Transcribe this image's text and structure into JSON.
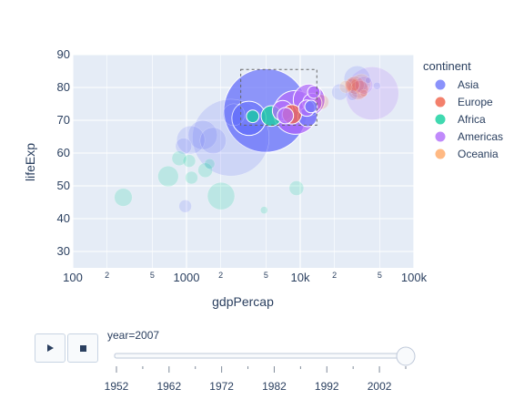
{
  "chart_data": {
    "type": "scatter",
    "frame_label": "year=2007",
    "xlabel": "gdpPercap",
    "ylabel": "lifeExp",
    "x_scale": "log",
    "xlim": [
      100,
      100000
    ],
    "ylim": [
      25,
      90
    ],
    "x_ticks": [
      {
        "value": 100,
        "label": "100"
      },
      {
        "value": 200,
        "label": "2"
      },
      {
        "value": 500,
        "label": "5"
      },
      {
        "value": 1000,
        "label": "1000"
      },
      {
        "value": 2000,
        "label": "2"
      },
      {
        "value": 5000,
        "label": "5"
      },
      {
        "value": 10000,
        "label": "10k"
      },
      {
        "value": 20000,
        "label": "2"
      },
      {
        "value": 50000,
        "label": "5"
      },
      {
        "value": 100000,
        "label": "100k"
      }
    ],
    "y_ticks": [
      30,
      40,
      50,
      60,
      70,
      80,
      90
    ],
    "grid": true,
    "legend": {
      "title": "continent",
      "placement": "right",
      "items": [
        {
          "name": "Asia",
          "color": "#636efa"
        },
        {
          "name": "Europe",
          "color": "#ef553b"
        },
        {
          "name": "Africa",
          "color": "#00cc96"
        },
        {
          "name": "Americas",
          "color": "#ab63fa"
        },
        {
          "name": "Oceania",
          "color": "#ffa15a"
        }
      ]
    },
    "series": [
      {
        "name": "Asia",
        "color": "#636efa",
        "points": [
          {
            "x": 4959,
            "y": 73.0,
            "s": 1.32
          },
          {
            "x": 2452,
            "y": 64.7,
            "s": 1.11
          },
          {
            "x": 3541,
            "y": 70.6,
            "s": 0.22
          },
          {
            "x": 1391,
            "y": 65.5,
            "s": 0.16
          },
          {
            "x": 31656,
            "y": 82.6,
            "s": 0.13
          },
          {
            "x": 1091,
            "y": 64.0,
            "s": 0.15
          },
          {
            "x": 2605,
            "y": 71.7,
            "s": 0.09
          },
          {
            "x": 944,
            "y": 62.1,
            "s": 0.05
          },
          {
            "x": 11606,
            "y": 71.0,
            "s": 0.07
          },
          {
            "x": 22316,
            "y": 78.6,
            "s": 0.05
          },
          {
            "x": 12452,
            "y": 74.2,
            "s": 0.03
          },
          {
            "x": 47307,
            "y": 80.5,
            "s": 0.01
          },
          {
            "x": 39725,
            "y": 82.2,
            "s": 0.007
          },
          {
            "x": 28718,
            "y": 77.6,
            "s": 0.02
          },
          {
            "x": 1713,
            "y": 63.8,
            "s": 0.13
          },
          {
            "x": 975,
            "y": 43.8,
            "s": 0.03
          }
        ]
      },
      {
        "name": "Europe",
        "color": "#ef553b",
        "points": [
          {
            "x": 32170,
            "y": 79.4,
            "s": 0.08
          },
          {
            "x": 30470,
            "y": 80.7,
            "s": 0.06
          },
          {
            "x": 33203,
            "y": 79.4,
            "s": 0.06
          },
          {
            "x": 28570,
            "y": 80.5,
            "s": 0.04
          },
          {
            "x": 8458,
            "y": 71.8,
            "s": 0.07
          },
          {
            "x": 15390,
            "y": 75.6,
            "s": 0.04
          },
          {
            "x": 28821,
            "y": 80.9,
            "s": 0.04
          },
          {
            "x": 36181,
            "y": 78.3,
            "s": 0.01
          }
        ]
      },
      {
        "name": "Africa",
        "color": "#00cc96",
        "points": [
          {
            "x": 2014,
            "y": 46.9,
            "s": 0.14
          },
          {
            "x": 5581,
            "y": 71.3,
            "s": 0.08
          },
          {
            "x": 690,
            "y": 52.9,
            "s": 0.08
          },
          {
            "x": 9270,
            "y": 49.3,
            "s": 0.04
          },
          {
            "x": 278,
            "y": 46.5,
            "s": 0.06
          },
          {
            "x": 3820,
            "y": 71.2,
            "s": 0.03
          },
          {
            "x": 1463,
            "y": 54.8,
            "s": 0.04
          },
          {
            "x": 1107,
            "y": 52.5,
            "s": 0.03
          },
          {
            "x": 863,
            "y": 58.4,
            "s": 0.04
          },
          {
            "x": 1598,
            "y": 56.7,
            "s": 0.02
          },
          {
            "x": 4811,
            "y": 42.6,
            "s": 0.01
          },
          {
            "x": 1056,
            "y": 57.6,
            "s": 0.03
          }
        ]
      },
      {
        "name": "Americas",
        "color": "#ab63fa",
        "points": [
          {
            "x": 42952,
            "y": 78.2,
            "s": 0.53
          },
          {
            "x": 9066,
            "y": 72.4,
            "s": 0.36
          },
          {
            "x": 11978,
            "y": 76.2,
            "s": 0.19
          },
          {
            "x": 36319,
            "y": 80.7,
            "s": 0.06
          },
          {
            "x": 12779,
            "y": 75.3,
            "s": 0.07
          },
          {
            "x": 7007,
            "y": 72.9,
            "s": 0.08
          },
          {
            "x": 7408,
            "y": 71.4,
            "s": 0.05
          },
          {
            "x": 13172,
            "y": 78.6,
            "s": 0.03
          },
          {
            "x": 11416,
            "y": 73.7,
            "s": 0.05
          }
        ]
      },
      {
        "name": "Oceania",
        "color": "#ffa15a",
        "points": [
          {
            "x": 34435,
            "y": 81.2,
            "s": 0.07
          },
          {
            "x": 25185,
            "y": 80.2,
            "s": 0.03
          }
        ]
      }
    ]
  },
  "player": {
    "play_icon": "play-icon",
    "stop_icon": "stop-icon",
    "years": [
      "1952",
      "1962",
      "1972",
      "1982",
      "1992",
      "2002"
    ],
    "current_year": "2007",
    "position": 1.0
  }
}
